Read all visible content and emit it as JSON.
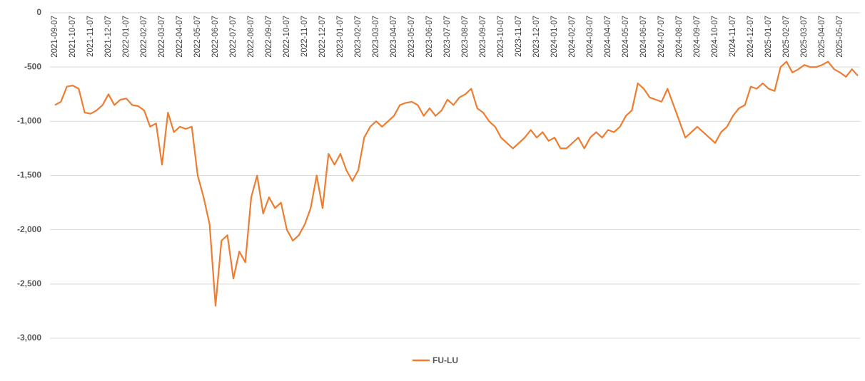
{
  "chart_data": {
    "type": "line",
    "categories": [
      "2021-09-07",
      null,
      null,
      "2021-10-07",
      null,
      null,
      "2021-11-07",
      null,
      null,
      "2021-12-07",
      null,
      null,
      "2022-01-07",
      null,
      null,
      "2022-02-07",
      null,
      null,
      "2022-03-07",
      null,
      null,
      "2022-04-07",
      null,
      null,
      "2022-05-07",
      null,
      null,
      "2022-06-07",
      null,
      null,
      "2022-07-07",
      null,
      null,
      "2022-08-07",
      null,
      null,
      "2022-09-07",
      null,
      null,
      "2022-10-07",
      null,
      null,
      "2022-11-07",
      null,
      null,
      "2022-12-07",
      null,
      null,
      "2023-01-07",
      null,
      null,
      "2023-02-07",
      null,
      null,
      "2023-03-07",
      null,
      null,
      "2023-04-07",
      null,
      null,
      "2023-05-07",
      null,
      null,
      "2023-06-07",
      null,
      null,
      "2023-07-07",
      null,
      null,
      "2023-08-07",
      null,
      null,
      "2023-09-07",
      null,
      null,
      "2023-10-07",
      null,
      null,
      "2023-11-07",
      null,
      null,
      "2023-12-07",
      null,
      null,
      "2024-01-07",
      null,
      null,
      "2024-02-07",
      null,
      null,
      "2024-03-07",
      null,
      null,
      "2024-04-07",
      null,
      null,
      "2024-05-07",
      null,
      null,
      "2024-06-07",
      null,
      null,
      "2024-07-07",
      null,
      null,
      "2024-08-07",
      null,
      null,
      "2024-09-07",
      null,
      null,
      "2024-10-07",
      null,
      null,
      "2024-11-07",
      null,
      null,
      "2024-12-07",
      null,
      null,
      "2025-01-07",
      null,
      null,
      "2025-02-07",
      null,
      null,
      "2025-03-07",
      null,
      null,
      "2025-04-07",
      null,
      null,
      "2025-05-07",
      null,
      null,
      null
    ],
    "series": [
      {
        "name": "FU-LU",
        "color": "#ed7d31",
        "values": [
          -850,
          -820,
          -680,
          -670,
          -700,
          -920,
          -930,
          -900,
          -850,
          -750,
          -850,
          -800,
          -790,
          -850,
          -860,
          -900,
          -1050,
          -1020,
          -1400,
          -920,
          -1100,
          -1050,
          -1070,
          -1050,
          -1500,
          -1700,
          -1950,
          -2700,
          -2100,
          -2050,
          -2450,
          -2200,
          -2300,
          -1700,
          -1500,
          -1850,
          -1700,
          -1800,
          -1750,
          -2000,
          -2100,
          -2050,
          -1950,
          -1800,
          -1500,
          -1800,
          -1300,
          -1400,
          -1300,
          -1450,
          -1550,
          -1450,
          -1150,
          -1050,
          -1000,
          -1050,
          -1000,
          -950,
          -850,
          -830,
          -820,
          -850,
          -950,
          -880,
          -950,
          -900,
          -800,
          -850,
          -780,
          -750,
          -700,
          -880,
          -920,
          -1000,
          -1050,
          -1150,
          -1200,
          -1250,
          -1200,
          -1150,
          -1080,
          -1150,
          -1100,
          -1180,
          -1150,
          -1250,
          -1250,
          -1200,
          -1150,
          -1250,
          -1150,
          -1100,
          -1150,
          -1080,
          -1100,
          -1050,
          -950,
          -900,
          -650,
          -700,
          -780,
          -800,
          -820,
          -700,
          -850,
          -1000,
          -1150,
          -1100,
          -1050,
          -1100,
          -1150,
          -1200,
          -1100,
          -1050,
          -950,
          -880,
          -850,
          -680,
          -700,
          -650,
          -700,
          -720,
          -500,
          -450,
          -550,
          -520,
          -480,
          -500,
          -500,
          -480,
          -450,
          -520,
          -550,
          -590,
          -520,
          -580
        ]
      }
    ],
    "ylim": [
      -3000,
      0
    ],
    "yticks": [
      0,
      -500,
      {
        "value": -1000,
        "label": "-1,000"
      },
      {
        "value": -1500,
        "label": "-1,500"
      },
      {
        "value": -2000,
        "label": "-2,000"
      },
      {
        "value": -2500,
        "label": "-2,500"
      },
      {
        "value": -3000,
        "label": "-3,000"
      }
    ],
    "grid": true,
    "legend": "bottom"
  }
}
